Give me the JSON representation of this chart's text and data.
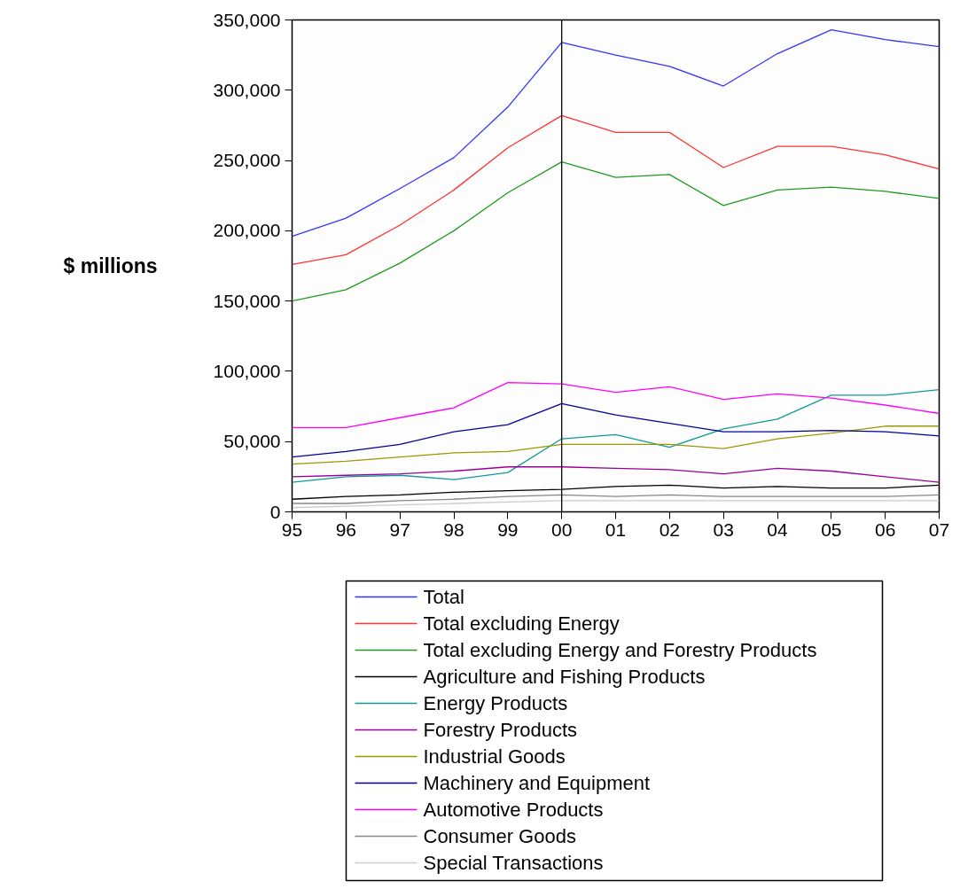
{
  "chart_data": {
    "type": "line",
    "ylabel": "$ millions",
    "x": [
      1995,
      1996,
      1997,
      1998,
      1999,
      2000,
      2001,
      2002,
      2003,
      2004,
      2005,
      2006,
      2007
    ],
    "xlim": [
      1995,
      2007
    ],
    "xticks": [
      {
        "value": 1995,
        "label": "95"
      },
      {
        "value": 1996,
        "label": "96"
      },
      {
        "value": 1997,
        "label": "97"
      },
      {
        "value": 1998,
        "label": "98"
      },
      {
        "value": 1999,
        "label": "99"
      },
      {
        "value": 2000,
        "label": "00"
      },
      {
        "value": 2001,
        "label": "01"
      },
      {
        "value": 2002,
        "label": "02"
      },
      {
        "value": 2003,
        "label": "03"
      },
      {
        "value": 2004,
        "label": "04"
      },
      {
        "value": 2005,
        "label": "05"
      },
      {
        "value": 2006,
        "label": "06"
      },
      {
        "value": 2007,
        "label": "07"
      }
    ],
    "ylim": [
      0,
      350000
    ],
    "yticks": [
      0,
      {
        "value": 50000,
        "label": "50,000"
      },
      {
        "value": 100000,
        "label": "100,000"
      },
      {
        "value": 150000,
        "label": "150,000"
      },
      {
        "value": 200000,
        "label": "200,000"
      },
      {
        "value": 250000,
        "label": "250,000"
      },
      {
        "value": 300000,
        "label": "300,000"
      },
      {
        "value": 350000,
        "label": "350,000"
      }
    ],
    "series": [
      {
        "name": "Total",
        "color": "#3333ff",
        "values": [
          196000,
          209000,
          230000,
          252000,
          288000,
          334000,
          325000,
          317000,
          303000,
          326000,
          343000,
          336000,
          331000
        ]
      },
      {
        "name": "Total excluding Energy",
        "color": "#ff3333",
        "values": [
          176000,
          183000,
          204000,
          229000,
          259000,
          282000,
          270000,
          270000,
          245000,
          260000,
          260000,
          254000,
          244000
        ]
      },
      {
        "name": "Total excluding Energy and Forestry Products",
        "color": "#229922",
        "values": [
          150000,
          158000,
          177000,
          200000,
          227000,
          249000,
          238000,
          240000,
          218000,
          229000,
          231000,
          228000,
          223000
        ]
      },
      {
        "name": "Agriculture and Fishing Products",
        "color": "#000000",
        "values": [
          9000,
          11000,
          12000,
          14000,
          15000,
          16000,
          18000,
          19000,
          17000,
          18000,
          17000,
          17000,
          19000
        ]
      },
      {
        "name": "Energy Products",
        "color": "#119999",
        "values": [
          21000,
          25000,
          26000,
          23000,
          28000,
          52000,
          55000,
          46000,
          59000,
          66000,
          83000,
          83000,
          87000
        ]
      },
      {
        "name": "Forestry Products",
        "color": "#990099",
        "values": [
          25000,
          26000,
          27000,
          29000,
          32000,
          32000,
          31000,
          30000,
          27000,
          31000,
          29000,
          25000,
          21000
        ]
      },
      {
        "name": "Industrial Goods",
        "color": "#999900",
        "values": [
          34000,
          36000,
          39000,
          42000,
          43000,
          48000,
          48000,
          48000,
          45000,
          52000,
          56000,
          61000,
          61000
        ]
      },
      {
        "name": "Machinery and Equipment",
        "color": "#000099",
        "values": [
          39000,
          43000,
          48000,
          57000,
          62000,
          77000,
          69000,
          63000,
          57000,
          57000,
          58000,
          57000,
          54000
        ]
      },
      {
        "name": "Automotive Products",
        "color": "#ff00ff",
        "values": [
          60000,
          60000,
          67000,
          74000,
          92000,
          91000,
          85000,
          89000,
          80000,
          84000,
          81000,
          76000,
          70000
        ]
      },
      {
        "name": "Consumer Goods",
        "color": "#888888",
        "values": [
          6000,
          6000,
          8000,
          9000,
          11000,
          12000,
          11000,
          12000,
          11000,
          11000,
          11000,
          11000,
          12000
        ]
      },
      {
        "name": "Special Transactions",
        "color": "#cccccc",
        "values": [
          3000,
          4000,
          5000,
          6000,
          7000,
          8000,
          8000,
          8000,
          8000,
          8000,
          8000,
          8000,
          8000
        ]
      }
    ],
    "ref_lines": [
      {
        "axis": "x",
        "value": 2000,
        "color": "#000000"
      }
    ],
    "grid": false,
    "legend": "bottom"
  }
}
